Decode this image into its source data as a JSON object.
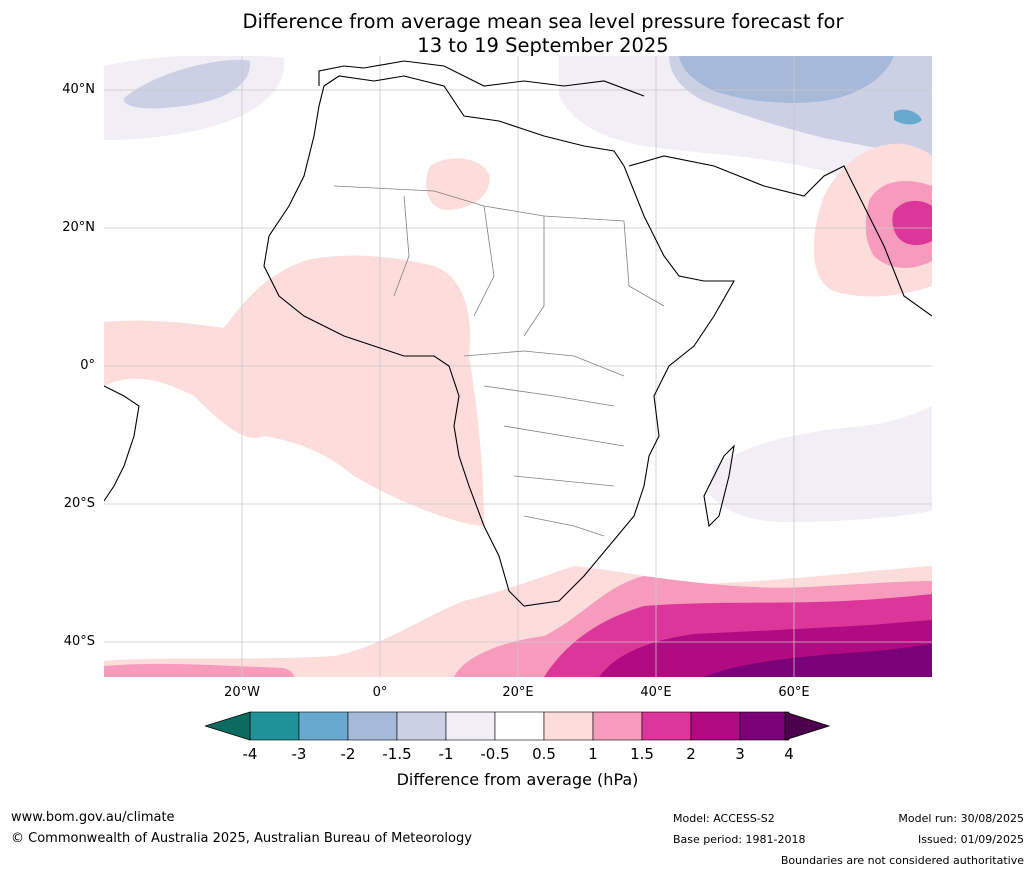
{
  "title": {
    "line1": "Difference from average mean sea level pressure forecast for",
    "line2": "13 to 19 September 2025"
  },
  "map": {
    "lat_labels": [
      "40°N",
      "20°N",
      "0°",
      "20°S",
      "40°S"
    ],
    "lon_labels": [
      "20°W",
      "0°",
      "20°E",
      "40°E",
      "60°E"
    ]
  },
  "colorbar": {
    "ticks": [
      "-4",
      "-3",
      "-2",
      "-1.5",
      "-1",
      "-0.5",
      "0.5",
      "1",
      "1.5",
      "2",
      "3",
      "4"
    ],
    "colors": [
      "#1e9296",
      "#68aacf",
      "#a6b9d8",
      "#ccd0e4",
      "#f2eef5",
      "#ffffff",
      "#fddcdc",
      "#f79bbd",
      "#dd369a",
      "#b10b83",
      "#7a0177"
    ],
    "under_color": "#0c6b5f",
    "over_color": "#4d004b",
    "label": "Difference from average (hPa)"
  },
  "footer": {
    "url": "www.bom.gov.au/climate",
    "copyright": "© Commonwealth of Australia 2025, Australian Bureau of Meteorology",
    "model": "Model: ACCESS-S2",
    "base_period": "Base period: 1981-2018",
    "model_run": "Model run: 30/08/2025",
    "issued": "Issued: 01/09/2025",
    "disclaimer": "Boundaries are not considered authoritative"
  }
}
